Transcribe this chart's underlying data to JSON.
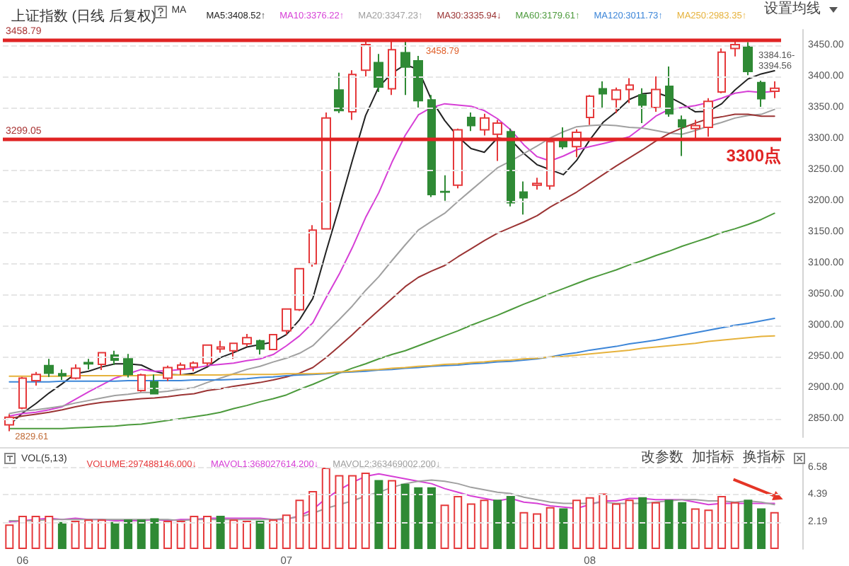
{
  "chart_data": [
    {
      "type": "candlestick",
      "title": "上证指数 (日线 后复权)",
      "legend_title": "MA",
      "legend": "top left",
      "tick_labels": "y",
      "grid": "y",
      "categories": [
        null,
        "06",
        null,
        null,
        null,
        null,
        null,
        null,
        null,
        null,
        null,
        null,
        null,
        null,
        null,
        null,
        null,
        null,
        null,
        null,
        null,
        "07",
        null,
        null,
        null,
        null,
        null,
        null,
        null,
        null,
        null,
        null,
        null,
        null,
        null,
        null,
        null,
        null,
        null,
        null,
        null,
        null,
        null,
        null,
        "08",
        null,
        null,
        null,
        null,
        null,
        null,
        null,
        null,
        null,
        null,
        null,
        null,
        null,
        null
      ],
      "ohlc": [
        [
          2840,
          2857,
          2829.61,
          2852
        ],
        [
          2867,
          2917,
          2865,
          2915
        ],
        [
          2911,
          2925,
          2903,
          2921
        ],
        [
          2935,
          2946,
          2917,
          2923
        ],
        [
          2922,
          2929,
          2912,
          2919
        ],
        [
          2915,
          2937,
          2913,
          2931
        ],
        [
          2940,
          2946,
          2929,
          2938
        ],
        [
          2937,
          2957,
          2928,
          2956
        ],
        [
          2952,
          2959,
          2936,
          2944
        ],
        [
          2946,
          2954,
          2916,
          2921
        ],
        [
          2895,
          2922,
          2893,
          2920
        ],
        [
          2909,
          2921,
          2890,
          2890
        ],
        [
          2915,
          2935,
          2910,
          2932
        ],
        [
          2930,
          2940,
          2920,
          2936
        ],
        [
          2933,
          2942,
          2926,
          2939
        ],
        [
          2939,
          2968,
          2935,
          2968
        ],
        [
          2962,
          2975,
          2956,
          2965
        ],
        [
          2959,
          2971,
          2946,
          2971
        ],
        [
          2970,
          2986,
          2966,
          2980
        ],
        [
          2975,
          2977,
          2953,
          2962
        ],
        [
          2961,
          2986,
          2961,
          2985
        ],
        [
          2991,
          3026,
          2985,
          3026
        ],
        [
          3025,
          3091,
          3023,
          3091
        ],
        [
          3099,
          3161,
          3094,
          3153
        ],
        [
          3155,
          3342,
          3155,
          3333
        ],
        [
          3378,
          3406,
          3341,
          3345
        ],
        [
          3343,
          3410,
          3330,
          3403
        ],
        [
          3410,
          3456,
          3400,
          3451
        ],
        [
          3422,
          3436,
          3375,
          3383
        ],
        [
          3380,
          3458.79,
          3370,
          3443
        ],
        [
          3438,
          3457,
          3370,
          3415
        ],
        [
          3425,
          3433,
          3350,
          3361
        ],
        [
          3362,
          3370,
          3206,
          3210
        ],
        [
          3215,
          3241,
          3200,
          3214
        ],
        [
          3225,
          3316,
          3220,
          3314
        ],
        [
          3334,
          3342,
          3312,
          3321
        ],
        [
          3314,
          3340,
          3305,
          3333
        ],
        [
          3307,
          3330,
          3264,
          3325
        ],
        [
          3311,
          3316,
          3191,
          3197
        ],
        [
          3214,
          3231,
          3178,
          3205
        ],
        [
          3225,
          3237,
          3218,
          3228
        ],
        [
          3224,
          3296,
          3218,
          3295
        ],
        [
          3300,
          3318,
          3283,
          3287
        ],
        [
          3287,
          3315,
          3270,
          3310
        ],
        [
          3334,
          3370,
          3322,
          3368
        ],
        [
          3380,
          3392,
          3348,
          3372
        ],
        [
          3363,
          3382,
          3341,
          3378
        ],
        [
          3379,
          3397,
          3357,
          3386
        ],
        [
          3370,
          3381,
          3325,
          3354
        ],
        [
          3350,
          3400,
          3343,
          3379
        ],
        [
          3384,
          3416,
          3335,
          3340
        ],
        [
          3330,
          3337,
          3272,
          3319
        ],
        [
          3316,
          3330,
          3300,
          3321
        ],
        [
          3318,
          3365,
          3303,
          3360
        ],
        [
          3375,
          3445,
          3373,
          3439
        ],
        [
          3445,
          3458,
          3432,
          3451
        ],
        [
          3448,
          3455,
          3402,
          3408
        ],
        [
          3390,
          3393,
          3351,
          3364
        ],
        [
          3376,
          3392,
          3365,
          3381
        ]
      ],
      "colors": [
        "#e5393b",
        "#e5393b",
        "#e5393b",
        "#2f8a35",
        "#2f8a35",
        "#e5393b",
        "#2f8a35",
        "#e5393b",
        "#2f8a35",
        "#2f8a35",
        "#e5393b",
        "#2f8a35",
        "#e5393b",
        "#e5393b",
        "#e5393b",
        "#e5393b",
        "#e5393b",
        "#e5393b",
        "#e5393b",
        "#2f8a35",
        "#e5393b",
        "#e5393b",
        "#e5393b",
        "#e5393b",
        "#e5393b",
        "#2f8a35",
        "#e5393b",
        "#e5393b",
        "#2f8a35",
        "#e5393b",
        "#2f8a35",
        "#2f8a35",
        "#2f8a35",
        "#2f8a35",
        "#e5393b",
        "#2f8a35",
        "#e5393b",
        "#e5393b",
        "#2f8a35",
        "#2f8a35",
        "#e5393b",
        "#e5393b",
        "#2f8a35",
        "#e5393b",
        "#e5393b",
        "#2f8a35",
        "#e5393b",
        "#e5393b",
        "#2f8a35",
        "#e5393b",
        "#2f8a35",
        "#2f8a35",
        "#e5393b",
        "#e5393b",
        "#e5393b",
        "#e5393b",
        "#2f8a35",
        "#2f8a35",
        "#e5393b"
      ],
      "series": [
        {
          "type": "line",
          "name": "MA5:3408.52↑",
          "color": "#222222",
          "values": [
            2840,
            2859,
            2874,
            2891,
            2906,
            2922,
            2926,
            2933,
            2938,
            2938,
            2936,
            2926,
            2921,
            2920,
            2923,
            2933,
            2948,
            2956,
            2965,
            2969,
            2973,
            2985,
            3009,
            3043,
            3118,
            3190,
            3265,
            3337,
            3383,
            3405,
            3419,
            3411,
            3362,
            3329,
            3303,
            3284,
            3278,
            3301,
            3298,
            3276,
            3258,
            3250,
            3242,
            3265,
            3298,
            3326,
            3343,
            3363,
            3372,
            3374,
            3367,
            3356,
            3343,
            3344,
            3356,
            3378,
            3396,
            3404,
            3409
          ]
        },
        {
          "type": "line",
          "name": "MA10:3376.22↑",
          "color": "#d63fd6",
          "values": [
            2854,
            2858,
            2860,
            2864,
            2869,
            2881,
            2893,
            2904,
            2915,
            2922,
            2929,
            2926,
            2927,
            2929,
            2931,
            2935,
            2937,
            2939,
            2943,
            2946,
            2953,
            2967,
            2983,
            3004,
            3044,
            3082,
            3125,
            3173,
            3213,
            3262,
            3305,
            3338,
            3350,
            3356,
            3354,
            3352,
            3345,
            3332,
            3314,
            3290,
            3271,
            3264,
            3272,
            3282,
            3287,
            3292,
            3297,
            3303,
            3319,
            3336,
            3347,
            3350,
            3353,
            3358,
            3365,
            3373,
            3376,
            3374,
            3376
          ]
        },
        {
          "type": "line",
          "name": "MA20:3347.23↑",
          "color": "#a0a0a0",
          "values": [
            2858,
            2862,
            2864,
            2867,
            2870,
            2875,
            2879,
            2883,
            2887,
            2889,
            2892,
            2892,
            2894,
            2897,
            2900,
            2908,
            2915,
            2922,
            2929,
            2934,
            2941,
            2947,
            2955,
            2967,
            2988,
            3009,
            3031,
            3056,
            3078,
            3104,
            3129,
            3153,
            3167,
            3180,
            3199,
            3217,
            3235,
            3253,
            3264,
            3276,
            3288,
            3301,
            3311,
            3319,
            3321,
            3322,
            3321,
            3318,
            3317,
            3313,
            3309,
            3307,
            3313,
            3320,
            3326,
            3333,
            3337,
            3339,
            3347
          ]
        },
        {
          "type": "line",
          "name": "MA30:3335.94↓",
          "color": "#9b3434",
          "values": [
            2850,
            2854,
            2857,
            2860,
            2864,
            2869,
            2873,
            2876,
            2878,
            2880,
            2882,
            2883,
            2885,
            2888,
            2890,
            2895,
            2898,
            2902,
            2905,
            2908,
            2912,
            2917,
            2923,
            2932,
            2948,
            2966,
            2985,
            3005,
            3024,
            3043,
            3062,
            3077,
            3087,
            3096,
            3110,
            3123,
            3136,
            3148,
            3157,
            3166,
            3176,
            3190,
            3202,
            3214,
            3228,
            3242,
            3256,
            3269,
            3282,
            3296,
            3308,
            3317,
            3325,
            3332,
            3335,
            3339,
            3339,
            3336,
            3336
          ]
        },
        {
          "type": "line",
          "name": "MA60:3179.61↑",
          "color": "#4c9a3c",
          "values": [
            2834,
            2834,
            2834,
            2834,
            2834,
            2835,
            2836,
            2837,
            2838,
            2840,
            2841,
            2844,
            2847,
            2850,
            2853,
            2856,
            2860,
            2866,
            2871,
            2877,
            2882,
            2888,
            2897,
            2905,
            2914,
            2923,
            2931,
            2938,
            2946,
            2953,
            2959,
            2967,
            2975,
            2983,
            2991,
            3000,
            3008,
            3016,
            3025,
            3034,
            3042,
            3051,
            3059,
            3067,
            3075,
            3082,
            3089,
            3097,
            3104,
            3112,
            3119,
            3127,
            3134,
            3141,
            3149,
            3155,
            3162,
            3170,
            3180
          ]
        },
        {
          "type": "line",
          "name": "MA120:3011.73↑",
          "color": "#3d86d8",
          "values": [
            2909,
            2909,
            2909,
            2909,
            2910,
            2910,
            2910,
            2910,
            2910,
            2911,
            2911,
            2911,
            2911,
            2911,
            2912,
            2912,
            2912,
            2913,
            2914,
            2916,
            2917,
            2919,
            2920,
            2921,
            2922,
            2924,
            2925,
            2926,
            2928,
            2929,
            2931,
            2932,
            2934,
            2935,
            2936,
            2938,
            2939,
            2941,
            2942,
            2944,
            2946,
            2949,
            2953,
            2956,
            2960,
            2963,
            2966,
            2970,
            2973,
            2976,
            2980,
            2984,
            2988,
            2992,
            2996,
            3000,
            3003,
            3007,
            3011
          ]
        },
        {
          "type": "line",
          "name": "MA250:2983.35↑",
          "color": "#e6b23c",
          "values": [
            2918,
            2918,
            2918,
            2918,
            2918,
            2919,
            2919,
            2919,
            2919,
            2919,
            2919,
            2920,
            2920,
            2920,
            2920,
            2920,
            2920,
            2921,
            2921,
            2921,
            2921,
            2922,
            2922,
            2922,
            2923,
            2925,
            2926,
            2928,
            2929,
            2931,
            2932,
            2934,
            2935,
            2937,
            2938,
            2940,
            2941,
            2943,
            2944,
            2946,
            2947,
            2949,
            2950,
            2952,
            2954,
            2956,
            2958,
            2960,
            2963,
            2965,
            2967,
            2969,
            2971,
            2974,
            2976,
            2978,
            2980,
            2982,
            2983
          ]
        }
      ],
      "ylim": [
        2820,
        3475
      ],
      "yticks": [
        {
          "value": 2850,
          "label": "2850.00"
        },
        {
          "value": 2900,
          "label": "2900.00"
        },
        {
          "value": 2950,
          "label": "2950.00"
        },
        {
          "value": 3000,
          "label": "3000.00"
        },
        {
          "value": 3050,
          "label": "3050.00"
        },
        {
          "value": 3100,
          "label": "3100.00"
        },
        {
          "value": 3150,
          "label": "3150.00"
        },
        {
          "value": 3200,
          "label": "3200.00"
        },
        {
          "value": 3250,
          "label": "3250.00"
        },
        {
          "value": 3300,
          "label": "3300.00"
        },
        {
          "value": 3350,
          "label": "3350.00"
        },
        {
          "value": 3400,
          "label": "3400.00"
        },
        {
          "value": 3450,
          "label": "3450.00"
        }
      ],
      "ref_lines": [
        {
          "axis": "y",
          "value": 3458.79,
          "label": "3458.79",
          "color": "#e02424"
        },
        {
          "axis": "y",
          "value": 3299.05,
          "label": "3299.05",
          "color": "#e02424"
        }
      ],
      "annotations": [
        "设置均线",
        {
          "text": "3458.79",
          "y": 3458.79
        },
        {
          "text": "2829.61",
          "y": 2829.61
        },
        {
          "text": "3300点",
          "y": 3300
        },
        {
          "text": "3384.16-3394.56",
          "y": 3403
        }
      ]
    },
    {
      "type": "bar",
      "legend_title": "VOL(5,13)",
      "legend": "top left",
      "grid": "y",
      "categories": [
        null,
        "06",
        null,
        null,
        null,
        null,
        null,
        null,
        null,
        null,
        null,
        null,
        null,
        null,
        null,
        null,
        null,
        null,
        null,
        null,
        null,
        "07",
        null,
        null,
        null,
        null,
        null,
        null,
        null,
        null,
        null,
        null,
        null,
        null,
        null,
        null,
        null,
        null,
        null,
        null,
        null,
        null,
        null,
        null,
        "08",
        null,
        null,
        null,
        null,
        null,
        null,
        null,
        null,
        null,
        null,
        null,
        null,
        null,
        null
      ],
      "series": [
        {
          "type": "bar",
          "name": "VOLUME:297488146.000↓",
          "colors": [
            "#e5393b",
            "#e5393b",
            "#e5393b",
            "#e5393b",
            "#2f8a35",
            "#e5393b",
            "#e5393b",
            "#e5393b",
            "#2f8a35",
            "#2f8a35",
            "#2f8a35",
            "#2f8a35",
            "#e5393b",
            "#e5393b",
            "#e5393b",
            "#e5393b",
            "#2f8a35",
            "#e5393b",
            "#e5393b",
            "#2f8a35",
            "#e5393b",
            "#e5393b",
            "#e5393b",
            "#e5393b",
            "#e5393b",
            "#e5393b",
            "#e5393b",
            "#e5393b",
            "#2f8a35",
            "#e5393b",
            "#2f8a35",
            "#2f8a35",
            "#2f8a35",
            "#e5393b",
            "#e5393b",
            "#e5393b",
            "#e5393b",
            "#2f8a35",
            "#2f8a35",
            "#e5393b",
            "#e5393b",
            "#e5393b",
            "#2f8a35",
            "#e5393b",
            "#e5393b",
            "#e5393b",
            "#e5393b",
            "#e5393b",
            "#2f8a35",
            "#e5393b",
            "#2f8a35",
            "#2f8a35",
            "#e5393b",
            "#e5393b",
            "#e5393b",
            "#e5393b",
            "#2f8a35",
            "#2f8a35",
            "#e5393b"
          ],
          "values": [
            2.0,
            2.7,
            2.7,
            2.7,
            2.2,
            2.3,
            2.4,
            2.4,
            2.2,
            2.4,
            2.4,
            2.5,
            2.3,
            2.3,
            2.7,
            2.7,
            2.7,
            2.4,
            2.3,
            2.3,
            2.4,
            2.8,
            4.0,
            4.7,
            6.6,
            6.0,
            6.0,
            6.2,
            5.6,
            5.6,
            5.3,
            5.0,
            5.0,
            3.6,
            4.3,
            3.7,
            4.0,
            4.0,
            4.3,
            3.0,
            2.9,
            3.4,
            3.3,
            4.0,
            4.2,
            4.5,
            3.7,
            4.0,
            4.2,
            3.8,
            4.0,
            3.8,
            3.3,
            3.2,
            4.3,
            3.8,
            4.0,
            3.3,
            3.0
          ]
        },
        {
          "type": "line",
          "name": "MAVOL1:368027614.200↓",
          "color": "#d63fd6",
          "values": [
            2.2,
            2.3,
            2.4,
            2.5,
            2.4,
            2.5,
            2.4,
            2.4,
            2.3,
            2.3,
            2.3,
            2.4,
            2.3,
            2.4,
            2.4,
            2.5,
            2.5,
            2.5,
            2.5,
            2.5,
            2.4,
            2.4,
            2.7,
            3.2,
            4.1,
            4.8,
            5.4,
            5.9,
            6.1,
            5.9,
            5.7,
            5.5,
            5.3,
            4.9,
            4.6,
            4.3,
            4.1,
            3.9,
            4.1,
            3.8,
            3.7,
            3.5,
            3.4,
            3.3,
            3.6,
            3.9,
            3.9,
            4.1,
            4.1,
            4.0,
            4.0,
            4.0,
            3.8,
            3.6,
            3.7,
            3.7,
            3.7,
            3.7,
            3.7
          ]
        },
        {
          "type": "line",
          "name": "MAVOL2:363469002.200↓",
          "color": "#a0a0a0",
          "values": [
            2.3,
            2.3,
            2.3,
            2.4,
            2.4,
            2.4,
            2.4,
            2.4,
            2.4,
            2.4,
            2.4,
            2.4,
            2.4,
            2.3,
            2.4,
            2.4,
            2.4,
            2.4,
            2.4,
            2.4,
            2.4,
            2.5,
            2.6,
            2.9,
            3.3,
            3.6,
            3.9,
            4.3,
            4.6,
            5.0,
            5.3,
            5.5,
            5.6,
            5.5,
            5.3,
            5.0,
            4.8,
            4.6,
            4.5,
            4.2,
            4.0,
            3.8,
            3.7,
            3.7,
            3.7,
            3.8,
            3.7,
            3.7,
            3.7,
            3.8,
            3.9,
            4.0,
            4.0,
            3.9,
            3.9,
            3.8,
            3.9,
            3.8,
            3.6
          ]
        }
      ],
      "ylim": [
        0,
        7
      ],
      "yticks": [
        2.19,
        4.39,
        6.58
      ],
      "annotations": [
        "改参数",
        "加指标",
        "换指标"
      ]
    }
  ]
}
